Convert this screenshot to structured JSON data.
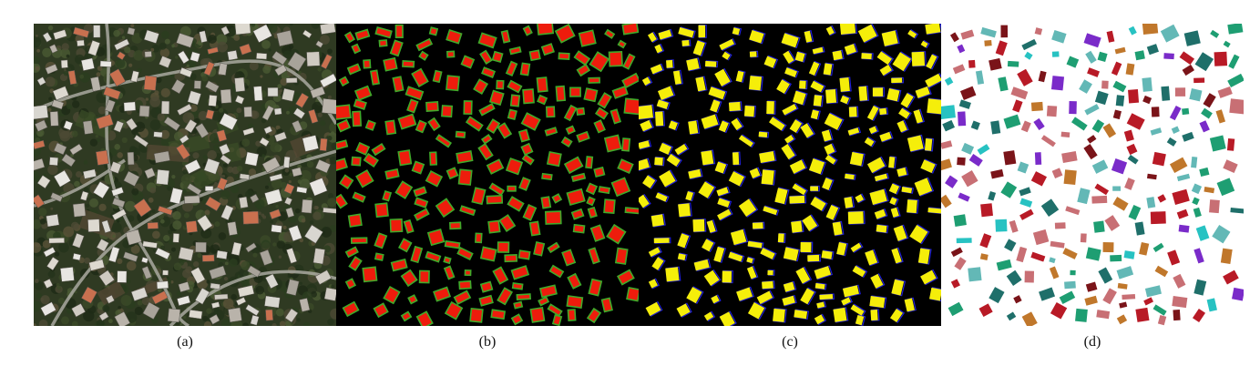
{
  "panels": [
    {
      "id": "a",
      "caption": "(a)",
      "kind": "aerial-photo"
    },
    {
      "id": "b",
      "caption": "(b)",
      "kind": "building-mask-red-green-outline"
    },
    {
      "id": "c",
      "caption": "(c)",
      "kind": "building-mask-yellow-blue-outline"
    },
    {
      "id": "d",
      "caption": "(d)",
      "kind": "instance-segmentation-colored"
    }
  ],
  "colors": {
    "mask_background": "#000000",
    "b_fill": "#ee1c0c",
    "b_outline": "#3faa2a",
    "c_fill": "#f5ee0a",
    "c_outline": "#2020d8",
    "d_background": "#ffffff",
    "d_palette": [
      "#27c2c2",
      "#7a2bc9",
      "#c0772b",
      "#1e9e72",
      "#c86f74",
      "#7a1419",
      "#1f6f6a",
      "#63b8b6",
      "#b81a26"
    ]
  }
}
